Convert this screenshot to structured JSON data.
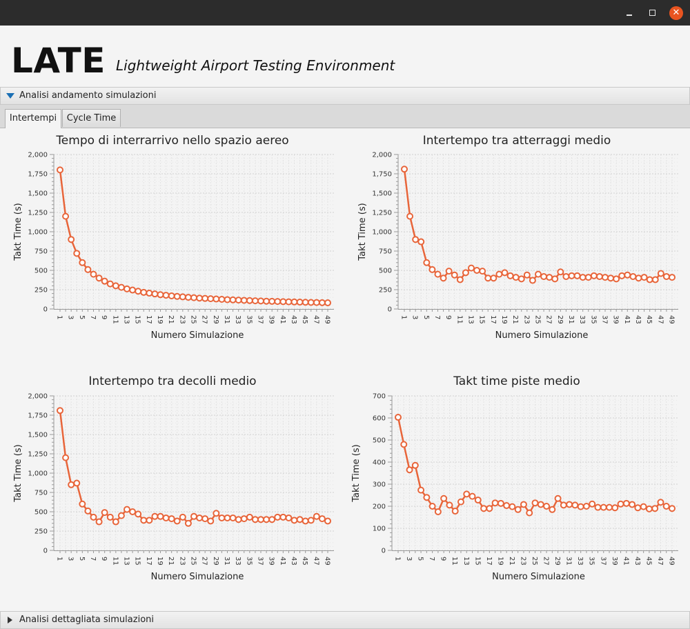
{
  "window": {
    "close_glyph": "✕"
  },
  "app": {
    "title": "LATE",
    "subtitle": "Lightweight Airport Testing Environment"
  },
  "panes": {
    "top_label": "Analisi andamento simulazioni",
    "bottom_label": "Analisi dettagliata simulazioni"
  },
  "tabs": [
    {
      "label": "Intertempi"
    },
    {
      "label": "Cycle Time"
    }
  ],
  "colors": {
    "series": "#e8653a",
    "grid": "#d0d0d0",
    "axis": "#999999"
  },
  "chart_data": [
    {
      "type": "line",
      "title": "Tempo di interrarrivo nello spazio aereo",
      "xlabel": "Numero Simulazione",
      "ylabel": "Takt Time (s)",
      "ylim": [
        0,
        2000
      ],
      "yticks": [
        "0",
        "250",
        "500",
        "750",
        "1,000",
        "1,250",
        "1,500",
        "1,750",
        "2,000"
      ],
      "xticks": [
        "1",
        "3",
        "5",
        "7",
        "9",
        "11",
        "13",
        "15",
        "17",
        "19",
        "21",
        "23",
        "25",
        "27",
        "29",
        "31",
        "33",
        "35",
        "37",
        "39",
        "41",
        "43",
        "45",
        "47",
        "49"
      ],
      "grid": true,
      "values": [
        1800,
        1200,
        900,
        720,
        600,
        510,
        450,
        400,
        360,
        325,
        300,
        280,
        260,
        245,
        230,
        215,
        205,
        195,
        185,
        178,
        170,
        163,
        157,
        151,
        146,
        141,
        137,
        133,
        129,
        125,
        121,
        118,
        115,
        112,
        109,
        106,
        104,
        101,
        99,
        97,
        95,
        93,
        91,
        89,
        87,
        85,
        84,
        82,
        80
      ]
    },
    {
      "type": "line",
      "title": "Intertempo tra atterraggi medio",
      "xlabel": "Numero Simulazione",
      "ylabel": "Takt Time (s)",
      "ylim": [
        0,
        2000
      ],
      "yticks": [
        "0",
        "250",
        "500",
        "750",
        "1,000",
        "1,250",
        "1,500",
        "1,750",
        "2,000"
      ],
      "xticks": [
        "1",
        "3",
        "5",
        "7",
        "9",
        "11",
        "13",
        "15",
        "17",
        "19",
        "21",
        "23",
        "25",
        "27",
        "29",
        "31",
        "33",
        "35",
        "37",
        "39",
        "41",
        "43",
        "45",
        "47",
        "49"
      ],
      "grid": true,
      "values": [
        1810,
        1200,
        900,
        870,
        600,
        510,
        450,
        400,
        490,
        440,
        380,
        470,
        530,
        500,
        490,
        400,
        400,
        450,
        470,
        430,
        410,
        390,
        440,
        370,
        450,
        420,
        410,
        390,
        480,
        420,
        430,
        430,
        410,
        410,
        430,
        420,
        410,
        400,
        390,
        430,
        440,
        420,
        400,
        410,
        380,
        380,
        460,
        420,
        410
      ]
    },
    {
      "type": "line",
      "title": "Intertempo tra decolli medio",
      "xlabel": "Numero Simulazione",
      "ylabel": "Takt Time (s)",
      "ylim": [
        0,
        2000
      ],
      "yticks": [
        "0",
        "250",
        "500",
        "750",
        "1,000",
        "1,250",
        "1,500",
        "1,750",
        "2,000"
      ],
      "xticks": [
        "1",
        "3",
        "5",
        "7",
        "9",
        "11",
        "13",
        "15",
        "17",
        "19",
        "21",
        "23",
        "25",
        "27",
        "29",
        "31",
        "33",
        "35",
        "37",
        "39",
        "41",
        "43",
        "45",
        "47",
        "49"
      ],
      "grid": true,
      "values": [
        1810,
        1200,
        850,
        870,
        600,
        510,
        430,
        370,
        490,
        430,
        370,
        450,
        530,
        500,
        470,
        390,
        390,
        440,
        440,
        420,
        410,
        380,
        430,
        350,
        440,
        420,
        410,
        380,
        480,
        420,
        420,
        420,
        400,
        410,
        430,
        400,
        400,
        400,
        400,
        430,
        430,
        420,
        390,
        400,
        380,
        390,
        440,
        410,
        380
      ]
    },
    {
      "type": "line",
      "title": "Takt time piste medio",
      "xlabel": "Numero Simulazione",
      "ylabel": "Takt Time (s)",
      "ylim": [
        0,
        700
      ],
      "yticks": [
        "0",
        "100",
        "200",
        "300",
        "400",
        "500",
        "600",
        "700"
      ],
      "xticks": [
        "1",
        "3",
        "5",
        "7",
        "9",
        "11",
        "13",
        "15",
        "17",
        "19",
        "21",
        "23",
        "25",
        "27",
        "29",
        "31",
        "33",
        "35",
        "37",
        "39",
        "41",
        "43",
        "45",
        "47",
        "49"
      ],
      "grid": true,
      "values": [
        603,
        480,
        365,
        385,
        273,
        240,
        200,
        175,
        235,
        205,
        178,
        220,
        255,
        245,
        228,
        190,
        190,
        215,
        213,
        203,
        198,
        185,
        208,
        170,
        215,
        208,
        200,
        185,
        235,
        205,
        208,
        205,
        198,
        200,
        210,
        195,
        195,
        195,
        193,
        210,
        213,
        208,
        193,
        198,
        188,
        190,
        218,
        200,
        190
      ]
    }
  ]
}
